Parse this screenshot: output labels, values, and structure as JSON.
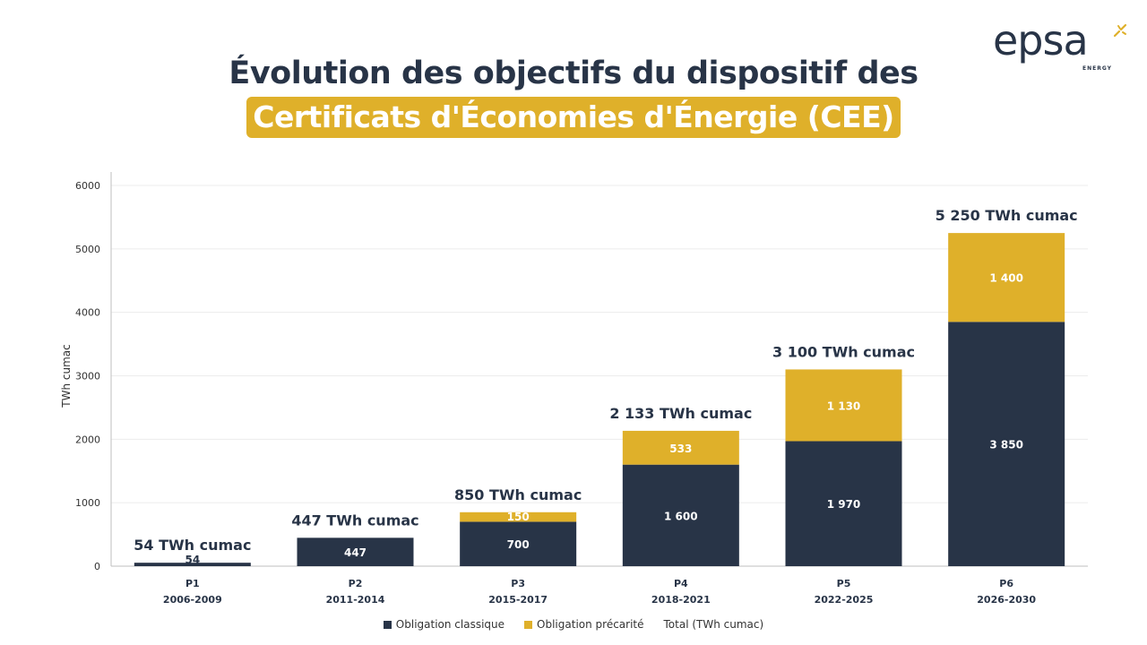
{
  "title": {
    "line1": "Évolution des objectifs du dispositif des",
    "line2": "Certificats d'Économies d'Énergie (CEE)"
  },
  "logo": {
    "word": "epsa",
    "sub": "ENERGY"
  },
  "colors": {
    "dark": "#283447",
    "gold": "#dfb02a"
  },
  "chart_data": {
    "type": "bar",
    "stacked": true,
    "categories": [
      "P1",
      "P2",
      "P3",
      "P4",
      "P5",
      "P6"
    ],
    "category_sublabels": [
      "2006-2009",
      "2011-2014",
      "2015-2017",
      "2018-2021",
      "2022-2025",
      "2026-2030"
    ],
    "series": [
      {
        "name": "Obligation classique",
        "color": "#283447",
        "values": [
          54,
          447,
          700,
          1600,
          1970,
          3850
        ],
        "labels": [
          "54",
          "447",
          "700",
          "1 600",
          "1 970",
          "3 850"
        ]
      },
      {
        "name": "Obligation précarité",
        "color": "#dfb02a",
        "values": [
          0,
          0,
          150,
          533,
          1130,
          1400
        ],
        "labels": [
          "",
          "",
          "150",
          "533",
          "1 130",
          "1 400"
        ]
      }
    ],
    "totals": [
      54,
      447,
      850,
      2133,
      3100,
      5250
    ],
    "total_labels": [
      "54 TWh cumac",
      "447 TWh cumac",
      "850 TWh cumac",
      "2 133 TWh cumac",
      "3 100 TWh cumac",
      "5 250 TWh cumac"
    ],
    "total_series_name": "Total (TWh cumac)",
    "ylabel": "TWh cumac",
    "ylim": [
      0,
      6000
    ],
    "yticks": [
      0,
      1000,
      2000,
      3000,
      4000,
      5000,
      6000
    ],
    "grid": true,
    "legend_position": "bottom"
  }
}
